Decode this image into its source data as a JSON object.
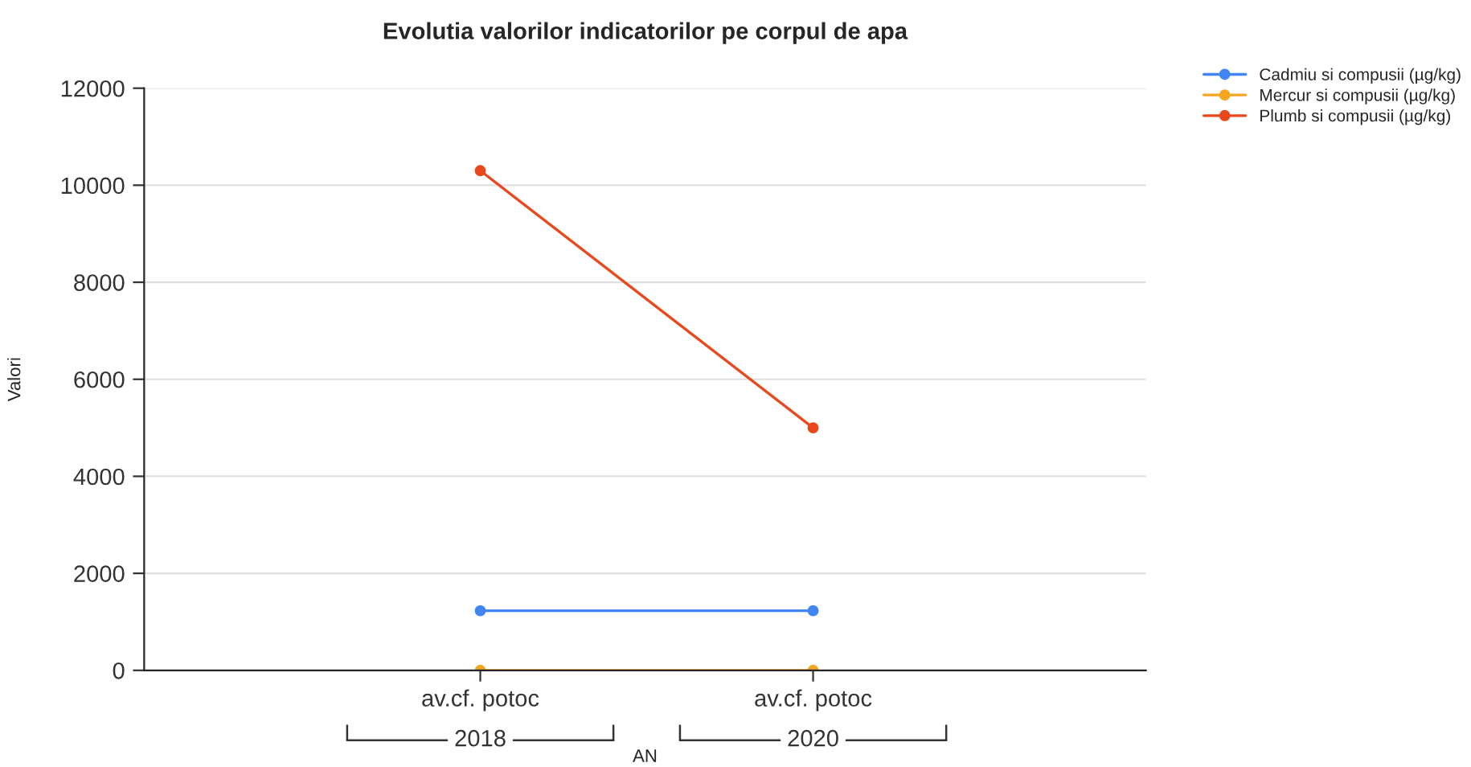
{
  "chart_data": {
    "type": "line",
    "title": "Evolutia valorilor indicatorilor pe corpul de apa",
    "xlabel": "AN",
    "ylabel": "Valori",
    "categories": [
      "av.cf. potoc",
      "av.cf. potoc"
    ],
    "annotations": [
      "2018",
      "2020"
    ],
    "series": [
      {
        "name": "Cadmiu si compusii (µg/kg)",
        "color": "#4285f4",
        "values": [
          1230,
          1230
        ]
      },
      {
        "name": "Mercur si compusii (µg/kg)",
        "color": "#f5a623",
        "values": [
          0,
          0
        ]
      },
      {
        "name": "Plumb si compusii (µg/kg)",
        "color": "#e8481c",
        "values": [
          10300,
          5000
        ]
      }
    ],
    "ylim": [
      0,
      12000
    ],
    "yticks": [
      0,
      2000,
      4000,
      6000,
      8000,
      10000,
      12000
    ],
    "grid": "y",
    "legend": "top right",
    "marker": "circle",
    "line_style": "solid"
  }
}
